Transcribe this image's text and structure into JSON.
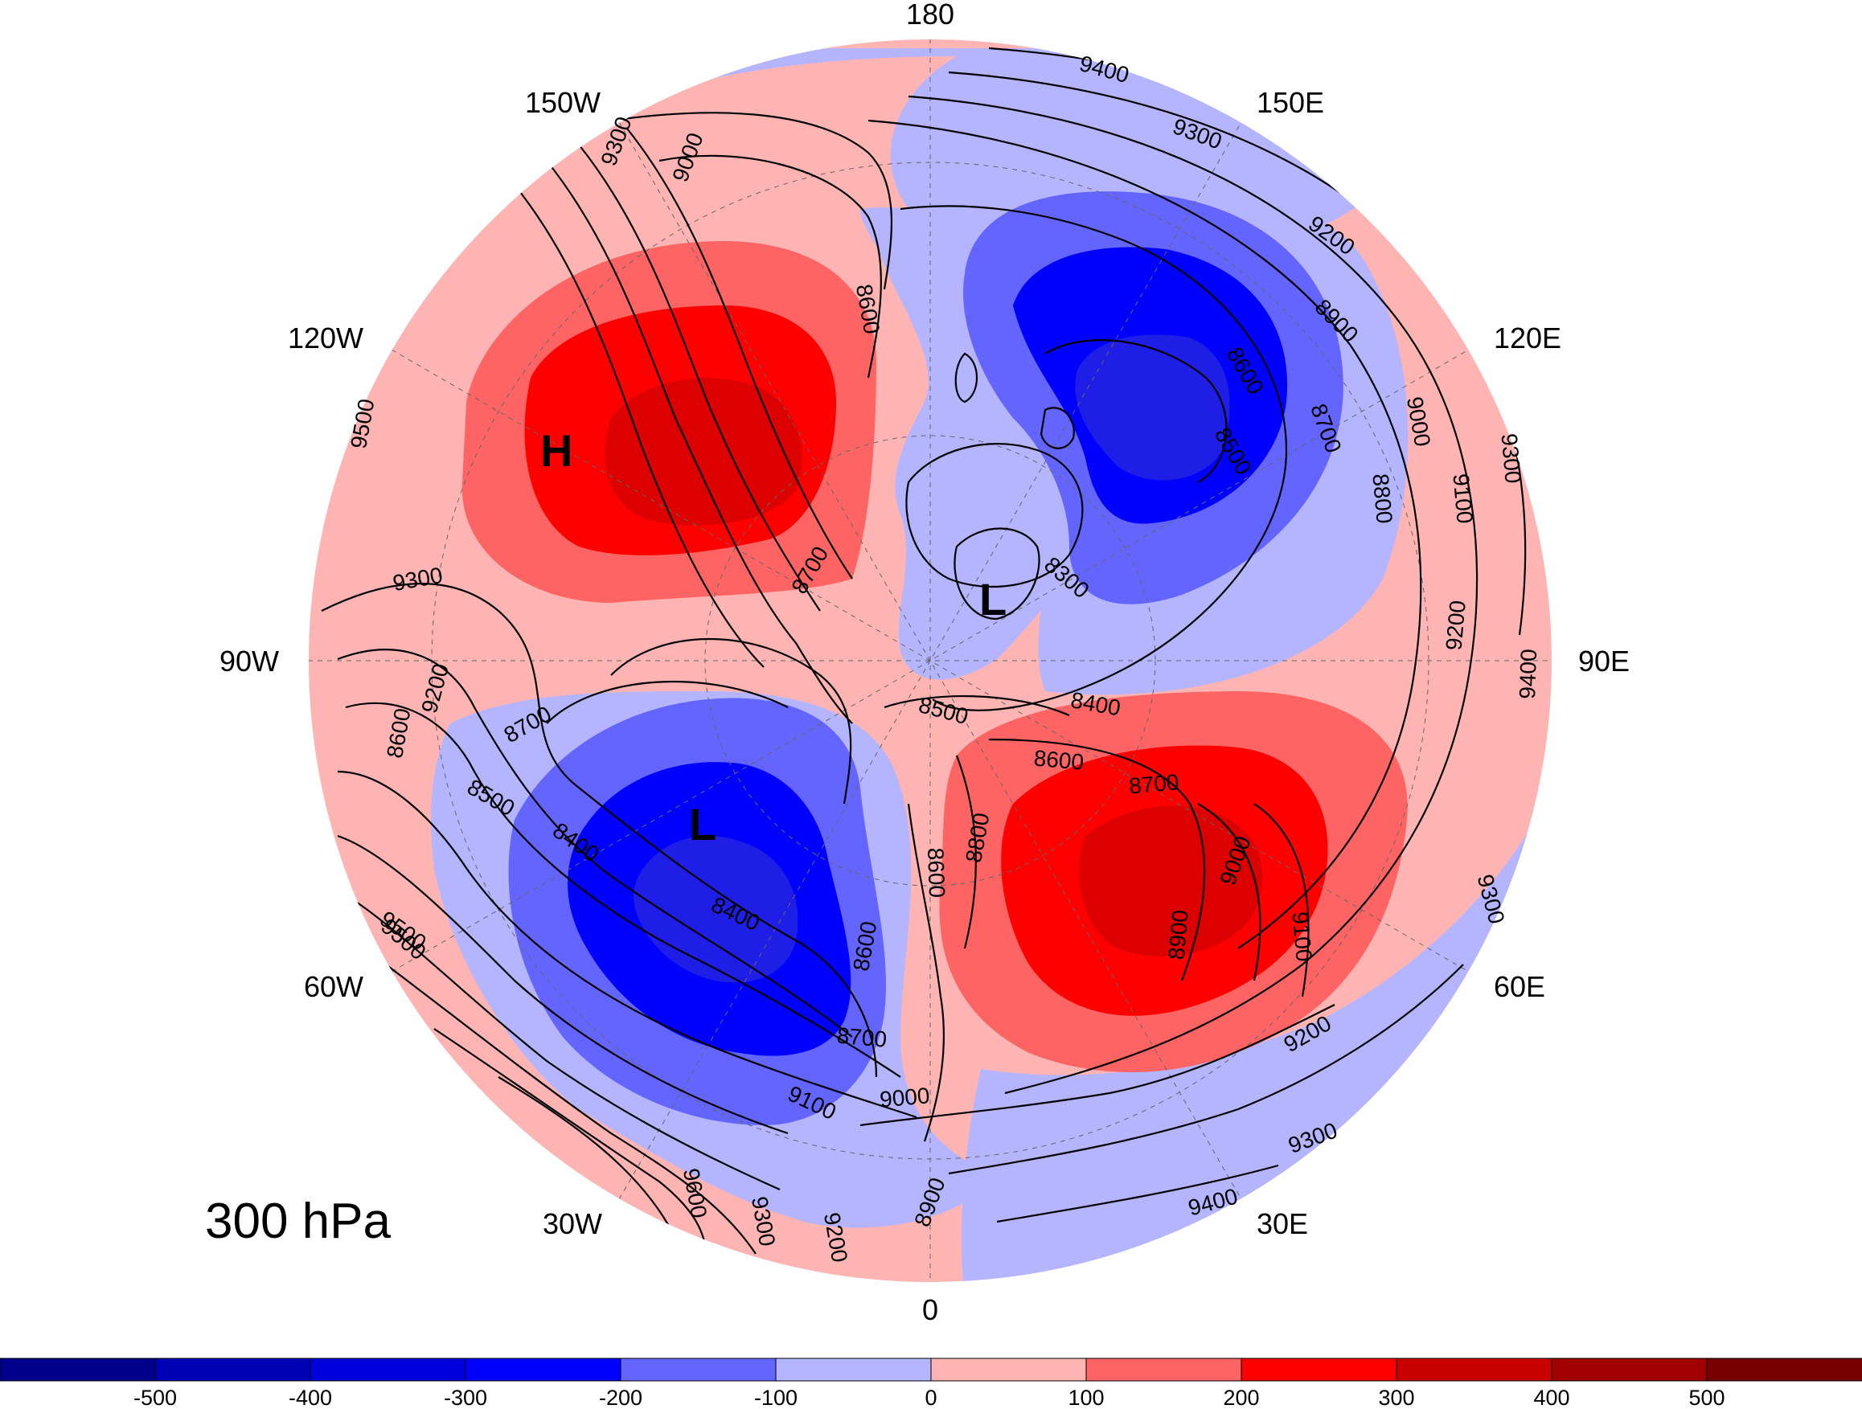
{
  "map": {
    "title": "300 hPa",
    "projection": "north-polar-stereographic",
    "longitude_labels": [
      {
        "label": "180",
        "lon": 180
      },
      {
        "label": "150E",
        "lon": 150
      },
      {
        "label": "120E",
        "lon": 120
      },
      {
        "label": "90E",
        "lon": 90
      },
      {
        "label": "60E",
        "lon": 60
      },
      {
        "label": "30E",
        "lon": 30
      },
      {
        "label": "0",
        "lon": 0
      },
      {
        "label": "30W",
        "lon": -30
      },
      {
        "label": "60W",
        "lon": -60
      },
      {
        "label": "90W",
        "lon": -90
      },
      {
        "label": "120W",
        "lon": -120
      },
      {
        "label": "150W",
        "lon": -150
      }
    ],
    "pressure_centers": [
      {
        "label": "H",
        "type": "high"
      },
      {
        "label": "L",
        "type": "low"
      },
      {
        "label": "L",
        "type": "low"
      }
    ],
    "contour_labels": [
      "9400",
      "9300",
      "9200",
      "8900",
      "8600",
      "8500",
      "8700",
      "8800",
      "9000",
      "9100",
      "9300",
      "9400",
      "9200",
      "9300",
      "9000",
      "9500",
      "9300",
      "8700",
      "8600",
      "8400",
      "8300",
      "8500",
      "8400",
      "8600",
      "8700",
      "9000",
      "9100",
      "8900",
      "8800",
      "8600",
      "8700",
      "9000",
      "9100",
      "9200",
      "9300",
      "9400",
      "9500",
      "9600",
      "9300",
      "9200",
      "8900",
      "9200",
      "8600",
      "8700",
      "8500",
      "8400",
      "8600",
      "9300",
      "9500"
    ],
    "colors": {
      "ocean_fill": "#ffffff",
      "anomaly_neg_3": "#0000ff",
      "anomaly_neg_2": "#6464ff",
      "anomaly_neg_1": "#b4b4ff",
      "anomaly_pos_1": "#ffb4b4",
      "anomaly_pos_2": "#ff6464",
      "anomaly_pos_3": "#ff0000",
      "anomaly_pos_4": "#dc0000",
      "anomaly_neg_4": "#1e1ee6"
    }
  },
  "colorbar": {
    "ticks": [
      "-500",
      "-400",
      "-300",
      "-200",
      "-100",
      "0",
      "100",
      "200",
      "300",
      "400",
      "500"
    ],
    "bins": [
      "#00008c",
      "#0000b4",
      "#0000dc",
      "#0000ff",
      "#6464ff",
      "#b4b4ff",
      "#ffb4b4",
      "#ff6464",
      "#ff0000",
      "#c80000",
      "#a00000",
      "#780000"
    ]
  }
}
